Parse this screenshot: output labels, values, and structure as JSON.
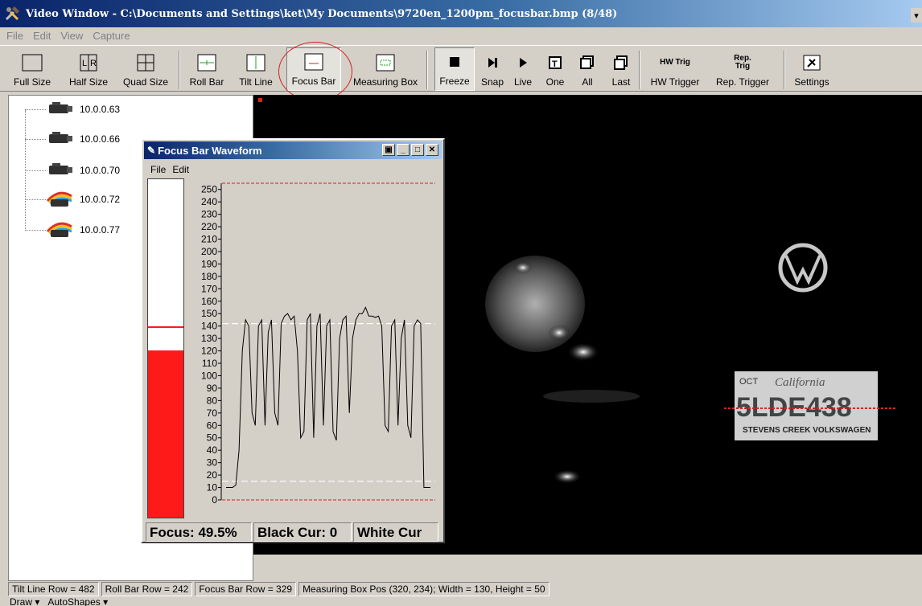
{
  "window": {
    "title": "Video Window - C:\\Documents and Settings\\ket\\My Documents\\9720en_1200pm_focusbar.bmp (8/48)"
  },
  "menu": [
    "File",
    "Edit",
    "View",
    "Capture"
  ],
  "toolbar": {
    "full_size": "Full Size",
    "half_size": "Half Size",
    "quad_size": "Quad Size",
    "roll_bar": "Roll Bar",
    "tilt_line": "Tilt Line",
    "focus_bar": "Focus Bar",
    "measuring_box": "Measuring Box",
    "freeze": "Freeze",
    "snap": "Snap",
    "live": "Live",
    "one": "One",
    "all": "All",
    "last": "Last",
    "hw_trigger": "HW Trigger",
    "hw_trig_icon": "HW Trig",
    "rep_trigger": "Rep. Trigger",
    "rep_trig_icon": "Rep. Trig",
    "settings": "Settings"
  },
  "cameras": [
    "10.0.0.63",
    "10.0.0.66",
    "10.0.0.70",
    "10.0.0.72",
    "10.0.0.77"
  ],
  "waveform_window": {
    "title": "Focus Bar Waveform",
    "menu": [
      "File",
      "Edit"
    ],
    "y_ticks": [
      "250",
      "240",
      "230",
      "220",
      "210",
      "200",
      "190",
      "180",
      "170",
      "160",
      "150",
      "140",
      "130",
      "120",
      "110",
      "100",
      "90",
      "80",
      "70",
      "60",
      "50",
      "40",
      "30",
      "20",
      "10",
      "0"
    ],
    "focus_level": 0.495,
    "marker_level": 0.56,
    "status": {
      "focus": "Focus: 49.5%",
      "black_cur": "Black Cur: 0",
      "white_cur": "White Cur"
    }
  },
  "chart_data": {
    "type": "line",
    "title": "",
    "ylim": [
      0,
      255
    ],
    "reference_lines": [
      255,
      142,
      15,
      0
    ],
    "series": [
      {
        "values": [
          10,
          10,
          10,
          12,
          40,
          120,
          145,
          140,
          70,
          60,
          140,
          145,
          60,
          135,
          145,
          70,
          60,
          142,
          148,
          150,
          145,
          148,
          120,
          50,
          55,
          145,
          150,
          50,
          140,
          150,
          60,
          140,
          145,
          55,
          48,
          130,
          145,
          148,
          70,
          130,
          145,
          150,
          150,
          155,
          148,
          148,
          147,
          148,
          140,
          60,
          55,
          140,
          145,
          60,
          130,
          145,
          60,
          50,
          140,
          145,
          142,
          10,
          10,
          10
        ]
      }
    ]
  },
  "statusbar": [
    "Tilt Line Row = 482",
    "Roll Bar Row = 242",
    "Focus Bar Row = 329",
    "Measuring Box Pos (320, 234); Width = 130, Height = 50"
  ],
  "drawbar": [
    "Draw ▾",
    "AutoShapes ▾"
  ]
}
